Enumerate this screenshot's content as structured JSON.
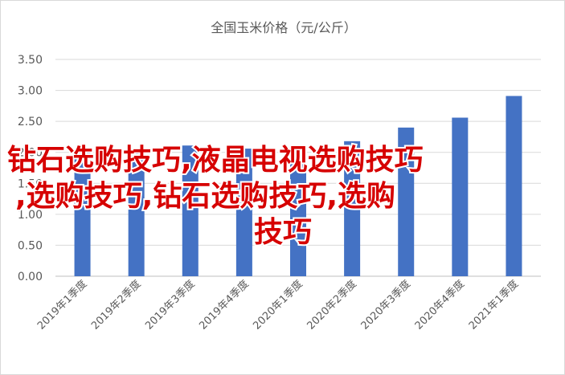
{
  "chart_data": {
    "type": "bar",
    "title": "全国玉米价格（元/公斤）",
    "categories": [
      "2019年1季度",
      "2019年2季度",
      "2019年3季度",
      "2019年4季度",
      "2020年1季度",
      "2020年2季度",
      "2020年3季度",
      "2020年4季度",
      "2021年1季度"
    ],
    "values": [
      2.04,
      1.98,
      2.11,
      2.06,
      2.08,
      2.18,
      2.4,
      2.56,
      2.91
    ],
    "ylim": [
      0,
      3.5
    ],
    "yticks": [
      "0.00",
      "0.50",
      "1.00",
      "1.50",
      "2.00",
      "2.50",
      "3.00",
      "3.50"
    ],
    "grid": true,
    "bar_color": "#4472c4"
  },
  "overlay_text": {
    "lines": [
      "钻石选购技巧,液晶电视选购技巧",
      ",选购技巧,钻石选购技巧,选购",
      "技巧"
    ],
    "color": "#d60000"
  }
}
